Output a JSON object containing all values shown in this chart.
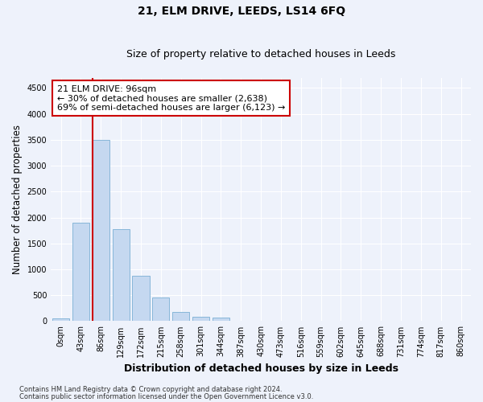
{
  "title": "21, ELM DRIVE, LEEDS, LS14 6FQ",
  "subtitle": "Size of property relative to detached houses in Leeds",
  "xlabel": "Distribution of detached houses by size in Leeds",
  "ylabel": "Number of detached properties",
  "categories": [
    "0sqm",
    "43sqm",
    "86sqm",
    "129sqm",
    "172sqm",
    "215sqm",
    "258sqm",
    "301sqm",
    "344sqm",
    "387sqm",
    "430sqm",
    "473sqm",
    "516sqm",
    "559sqm",
    "602sqm",
    "645sqm",
    "688sqm",
    "731sqm",
    "774sqm",
    "817sqm",
    "860sqm"
  ],
  "bar_heights": [
    50,
    1900,
    3500,
    1775,
    875,
    460,
    185,
    90,
    65,
    0,
    0,
    0,
    0,
    0,
    0,
    0,
    0,
    0,
    0,
    0,
    0
  ],
  "bar_color": "#c5d8f0",
  "bar_edge_color": "#7aafd4",
  "ylim": [
    0,
    4700
  ],
  "yticks": [
    0,
    500,
    1000,
    1500,
    2000,
    2500,
    3000,
    3500,
    4000,
    4500
  ],
  "vline_color": "#cc0000",
  "annotation_line1": "21 ELM DRIVE: 96sqm",
  "annotation_line2": "← 30% of detached houses are smaller (2,638)",
  "annotation_line3": "69% of semi-detached houses are larger (6,123) →",
  "annotation_box_facecolor": "#ffffff",
  "annotation_box_edgecolor": "#cc0000",
  "footer_line1": "Contains HM Land Registry data © Crown copyright and database right 2024.",
  "footer_line2": "Contains public sector information licensed under the Open Government Licence v3.0.",
  "background_color": "#eef2fb",
  "grid_color": "#ffffff",
  "title_fontsize": 10,
  "subtitle_fontsize": 9,
  "tick_fontsize": 7,
  "ylabel_fontsize": 8.5,
  "xlabel_fontsize": 9,
  "footer_fontsize": 6,
  "annotation_fontsize": 8
}
